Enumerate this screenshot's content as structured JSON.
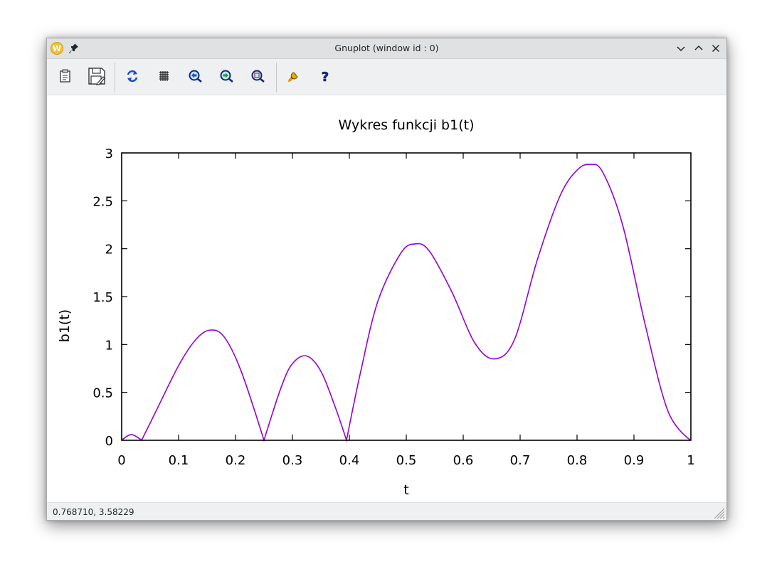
{
  "window": {
    "title": "Gnuplot (window id : 0)",
    "app_icon_letter": "W"
  },
  "toolbar": {
    "buttons": [
      {
        "name": "copy-to-clipboard",
        "icon": "clipboard-icon"
      },
      {
        "name": "save",
        "icon": "save-icon"
      },
      {
        "name": "replot",
        "icon": "refresh-icon"
      },
      {
        "name": "toggle-grid",
        "icon": "grid-icon"
      },
      {
        "name": "previous-zoom",
        "icon": "zoom-back-icon"
      },
      {
        "name": "next-zoom",
        "icon": "zoom-forward-icon"
      },
      {
        "name": "autoscale",
        "icon": "zoom-fit-icon"
      },
      {
        "name": "settings",
        "icon": "wrench-icon"
      },
      {
        "name": "help",
        "icon": "help-icon"
      }
    ]
  },
  "status": {
    "coordinates": "0.768710,  3.58229"
  },
  "chart_data": {
    "type": "line",
    "title": "Wykres funkcji b1(t)",
    "xlabel": "t",
    "ylabel": "b1(t)",
    "xlim": [
      0,
      1
    ],
    "ylim": [
      0,
      3
    ],
    "xticks": [
      "0",
      "0.1",
      "0.2",
      "0.3",
      "0.4",
      "0.5",
      "0.6",
      "0.7",
      "0.8",
      "0.9",
      "1"
    ],
    "yticks": [
      "0",
      "0.5",
      "1",
      "1.5",
      "2",
      "2.5",
      "3"
    ],
    "grid": false,
    "line_color": "#9400d3",
    "series": [
      {
        "x": [
          0,
          0.017,
          0.035,
          0.06,
          0.1,
          0.13,
          0.155,
          0.18,
          0.21,
          0.25,
          0.28,
          0.3,
          0.325,
          0.35,
          0.375,
          0.395,
          0.42,
          0.45,
          0.49,
          0.515,
          0.54,
          0.58,
          0.62,
          0.655,
          0.69,
          0.73,
          0.77,
          0.8,
          0.823,
          0.845,
          0.88,
          0.92,
          0.96,
          1.0
        ],
        "y": [
          0,
          0.06,
          0,
          0.3,
          0.78,
          1.05,
          1.15,
          1.08,
          0.72,
          0,
          0.55,
          0.8,
          0.88,
          0.72,
          0.35,
          0,
          0.72,
          1.45,
          1.95,
          2.05,
          1.98,
          1.55,
          1.02,
          0.85,
          1.05,
          1.88,
          2.55,
          2.82,
          2.88,
          2.8,
          2.25,
          1.2,
          0.3,
          0
        ]
      }
    ]
  }
}
